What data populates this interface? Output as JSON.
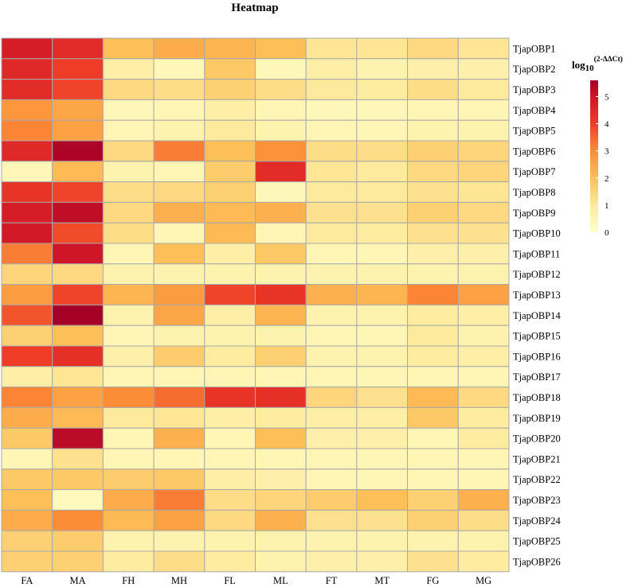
{
  "chart_data": {
    "type": "heatmap",
    "title": "Heatmap",
    "columns": [
      "FA",
      "MA",
      "FH",
      "MH",
      "FL",
      "ML",
      "FT",
      "MT",
      "FG",
      "MG"
    ],
    "rows": [
      "TjapOBP1",
      "TjapOBP2",
      "TjapOBP3",
      "TjapOBP4",
      "TjapOBP5",
      "TjapOBP6",
      "TjapOBP7",
      "TjapOBP8",
      "TjapOBP9",
      "TjapOBP10",
      "TjapOBP11",
      "TjapOBP12",
      "TjapOBP13",
      "TjapOBP14",
      "TjapOBP15",
      "TjapOBP16",
      "TjapOBP17",
      "TjapOBP18",
      "TjapOBP19",
      "TjapOBP20",
      "TjapOBP21",
      "TjapOBP22",
      "TjapOBP23",
      "TjapOBP24",
      "TjapOBP25",
      "TjapOBP26"
    ],
    "values": [
      [
        4.8,
        4.4,
        2.0,
        2.4,
        2.2,
        2.0,
        1.1,
        1.1,
        1.4,
        1.1
      ],
      [
        4.5,
        4.0,
        0.8,
        0.4,
        1.8,
        0.4,
        0.8,
        0.6,
        0.7,
        0.7
      ],
      [
        4.4,
        3.9,
        1.4,
        1.3,
        1.6,
        1.3,
        1.0,
        0.9,
        1.3,
        1.0
      ],
      [
        2.8,
        2.5,
        0.4,
        0.5,
        0.8,
        0.5,
        0.4,
        0.4,
        0.5,
        0.5
      ],
      [
        3.1,
        2.6,
        0.5,
        0.6,
        1.0,
        0.6,
        0.5,
        0.5,
        0.6,
        0.6
      ],
      [
        4.5,
        5.5,
        1.4,
        3.2,
        2.0,
        2.9,
        1.3,
        1.3,
        1.6,
        1.5
      ],
      [
        0.4,
        2.1,
        0.6,
        0.5,
        1.7,
        4.4,
        1.1,
        1.0,
        1.4,
        1.5
      ],
      [
        4.2,
        3.9,
        1.3,
        1.4,
        1.6,
        0.4,
        1.0,
        1.0,
        1.2,
        1.1
      ],
      [
        4.8,
        5.2,
        1.4,
        2.3,
        2.1,
        2.3,
        1.2,
        1.2,
        1.6,
        1.4
      ],
      [
        4.9,
        3.8,
        1.3,
        0.5,
        2.1,
        0.5,
        1.0,
        0.9,
        1.2,
        1.2
      ],
      [
        3.2,
        5.0,
        0.5,
        2.0,
        0.8,
        1.8,
        0.5,
        0.5,
        0.7,
        0.7
      ],
      [
        1.5,
        1.4,
        0.6,
        0.6,
        0.6,
        0.6,
        0.6,
        0.6,
        0.6,
        0.6
      ],
      [
        2.7,
        3.9,
        2.2,
        2.7,
        3.9,
        4.2,
        2.3,
        2.2,
        3.1,
        2.6
      ],
      [
        3.7,
        5.6,
        0.6,
        2.5,
        0.8,
        2.2,
        0.6,
        0.6,
        0.9,
        0.8
      ],
      [
        1.6,
        2.0,
        0.5,
        0.6,
        0.6,
        0.6,
        0.5,
        0.5,
        1.0,
        0.6
      ],
      [
        4.0,
        4.3,
        0.7,
        1.7,
        0.9,
        1.6,
        0.6,
        0.6,
        0.9,
        0.8
      ],
      [
        0.8,
        1.1,
        0.5,
        0.5,
        0.5,
        0.5,
        0.5,
        0.5,
        0.5,
        0.5
      ],
      [
        3.1,
        2.6,
        3.0,
        3.4,
        4.2,
        4.3,
        1.5,
        1.2,
        2.1,
        1.4
      ],
      [
        2.4,
        2.1,
        1.0,
        1.1,
        0.8,
        0.9,
        0.8,
        0.8,
        1.8,
        0.9
      ],
      [
        1.8,
        5.3,
        0.5,
        2.3,
        0.5,
        2.0,
        0.7,
        0.7,
        0.5,
        0.9
      ],
      [
        0.5,
        1.2,
        0.5,
        0.5,
        0.5,
        0.5,
        0.5,
        0.5,
        0.5,
        0.5
      ],
      [
        1.8,
        1.8,
        1.7,
        1.8,
        0.8,
        0.7,
        0.5,
        0.5,
        0.5,
        0.5
      ],
      [
        2.0,
        0.3,
        2.4,
        3.2,
        1.3,
        1.5,
        1.7,
        2.0,
        1.6,
        2.3
      ],
      [
        2.4,
        3.0,
        2.1,
        2.6,
        1.4,
        2.3,
        1.2,
        1.2,
        1.6,
        1.3
      ],
      [
        1.6,
        1.7,
        0.6,
        0.6,
        0.6,
        0.6,
        0.6,
        0.6,
        0.6,
        0.6
      ],
      [
        1.6,
        1.6,
        0.9,
        1.3,
        0.9,
        0.6,
        0.7,
        0.7,
        1.2,
        0.9
      ]
    ],
    "color_scale": {
      "min": 0,
      "max": 5.6,
      "stops": [
        {
          "value": 0,
          "color": "#FFFFCC"
        },
        {
          "value": 1,
          "color": "#FEEA9C"
        },
        {
          "value": 2,
          "color": "#FDBF58"
        },
        {
          "value": 3,
          "color": "#FC8D37"
        },
        {
          "value": 4,
          "color": "#EE3C27"
        },
        {
          "value": 5,
          "color": "#CF1528"
        },
        {
          "value": 5.6,
          "color": "#A50026"
        }
      ]
    },
    "legend": {
      "title_main": "log",
      "title_sub": "10",
      "title_sup": "(2-ΔΔCt)",
      "ticks": [
        0,
        1,
        2,
        3,
        4,
        5
      ],
      "tick_labels": [
        "0",
        "1",
        "2",
        "3",
        "4",
        "5"
      ],
      "placement": "right"
    },
    "grid_line_color": "#A9A9A9"
  }
}
